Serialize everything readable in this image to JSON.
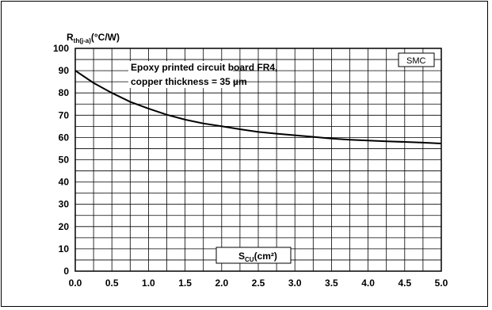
{
  "chart_data": {
    "type": "line",
    "ylabel_main": "R",
    "ylabel_sub": "th(j-a)",
    "ylabel_unit": "(°C/W)",
    "xlabel_main": "S",
    "xlabel_sub": "CU",
    "xlabel_unit": "(cm²)",
    "annotation_line1": "Epoxy printed circuit board FR4,",
    "annotation_line2": "copper thickness = 35 µm",
    "package_tag": "SMC",
    "xlim": [
      0,
      5
    ],
    "ylim": [
      0,
      100
    ],
    "x_ticks": [
      "0.0",
      "0.5",
      "1.0",
      "1.5",
      "2.0",
      "2.5",
      "3.0",
      "3.5",
      "4.0",
      "4.5",
      "5.0"
    ],
    "y_ticks": [
      "0",
      "10",
      "20",
      "30",
      "40",
      "50",
      "60",
      "70",
      "80",
      "90",
      "100"
    ],
    "grid": true,
    "series": [
      {
        "x": [
          0.0,
          0.25,
          0.5,
          0.75,
          1.0,
          1.25,
          1.5,
          1.75,
          2.0,
          2.25,
          2.5,
          2.75,
          3.0,
          3.25,
          3.5,
          3.75,
          4.0,
          4.25,
          4.5,
          4.75,
          5.0
        ],
        "y": [
          90,
          84.5,
          80,
          76,
          73,
          70.2,
          68,
          66.3,
          65,
          63.7,
          62.5,
          61.7,
          61,
          60.3,
          59.5,
          59,
          58.6,
          58.3,
          58,
          57.7,
          57.3
        ]
      }
    ]
  }
}
